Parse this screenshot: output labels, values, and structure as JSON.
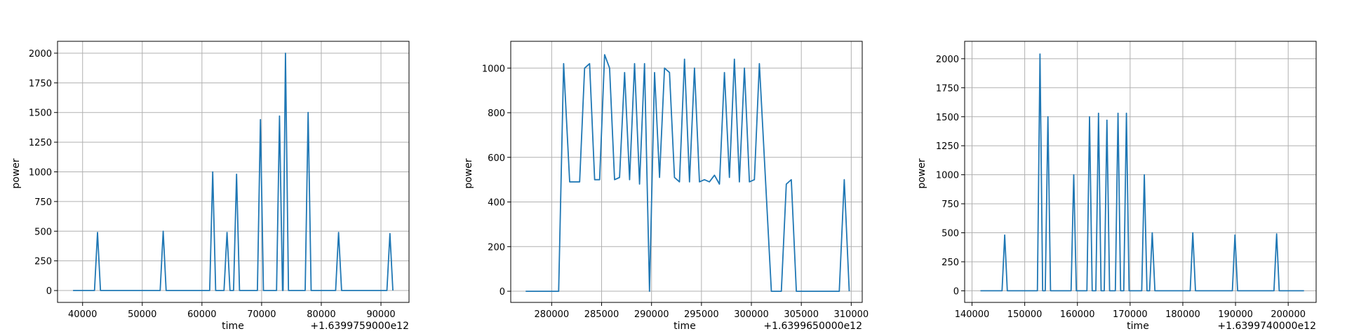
{
  "figure": {
    "background": "#ffffff",
    "line_color": "#1f77b4",
    "grid_color": "#b0b0b0"
  },
  "chart_data": [
    {
      "type": "line",
      "title": "",
      "xlabel": "time",
      "ylabel": "power",
      "offset_label": "+1.6399759000e12",
      "grid": true,
      "xlim": [
        35800,
        94700
      ],
      "ylim": [
        -100,
        2100
      ],
      "xticks": [
        40000,
        50000,
        60000,
        70000,
        80000,
        90000
      ],
      "xtick_labels": [
        "40000",
        "50000",
        "60000",
        "70000",
        "80000",
        "90000"
      ],
      "yticks": [
        0,
        250,
        500,
        750,
        1000,
        1250,
        1500,
        1750,
        2000
      ],
      "ytick_labels": [
        "0",
        "250",
        "500",
        "750",
        "1000",
        "1250",
        "1500",
        "1750",
        "2000"
      ],
      "series": [
        {
          "x": [
            38400,
            42000,
            42500,
            43000,
            53000,
            53500,
            54000,
            61300,
            61800,
            62300,
            63700,
            64200,
            64700,
            65300,
            65800,
            66300,
            69300,
            69800,
            70300,
            72500,
            73000,
            73500,
            73600,
            74000,
            74500,
            77300,
            77800,
            78300,
            82400,
            82900,
            83400,
            91000,
            91500,
            92000
          ],
          "y": [
            0,
            0,
            490,
            0,
            0,
            500,
            0,
            0,
            1000,
            0,
            0,
            490,
            0,
            0,
            980,
            0,
            0,
            1440,
            0,
            0,
            1470,
            0,
            0,
            2000,
            0,
            0,
            1500,
            0,
            0,
            490,
            0,
            0,
            480,
            0
          ]
        }
      ]
    },
    {
      "type": "line",
      "title": "",
      "xlabel": "time",
      "ylabel": "power",
      "offset_label": "+1.6399650000e12",
      "grid": true,
      "xlim": [
        275900,
        311100
      ],
      "ylim": [
        -50,
        1120
      ],
      "xticks": [
        280000,
        285000,
        290000,
        295000,
        300000,
        305000,
        310000
      ],
      "xtick_labels": [
        "280000",
        "285000",
        "290000",
        "295000",
        "300000",
        "305000",
        "310000"
      ],
      "yticks": [
        0,
        200,
        400,
        600,
        800,
        1000
      ],
      "ytick_labels": [
        "0",
        "200",
        "400",
        "600",
        "800",
        "1000"
      ],
      "series": [
        {
          "x": [
            277400,
            280700,
            281200,
            281800,
            282800,
            283300,
            283800,
            284300,
            284800,
            285300,
            285800,
            286300,
            286800,
            287300,
            287800,
            288300,
            288800,
            289300,
            289800,
            290300,
            290800,
            291300,
            291800,
            292300,
            292800,
            293300,
            293800,
            294300,
            294800,
            295300,
            295800,
            296300,
            296800,
            297300,
            297800,
            298300,
            298800,
            299300,
            299800,
            300300,
            300800,
            302000,
            302500,
            303000,
            303500,
            304000,
            304500,
            308800,
            309300,
            309800
          ],
          "y": [
            0,
            0,
            1020,
            490,
            490,
            1000,
            1020,
            500,
            500,
            1060,
            1000,
            500,
            510,
            980,
            500,
            1020,
            480,
            1020,
            0,
            980,
            510,
            1000,
            980,
            510,
            490,
            1040,
            490,
            1000,
            490,
            500,
            490,
            520,
            480,
            980,
            510,
            1040,
            490,
            1000,
            490,
            500,
            1020,
            0,
            0,
            0,
            480,
            500,
            0,
            0,
            500,
            0
          ]
        }
      ]
    },
    {
      "type": "line",
      "title": "",
      "xlabel": "time",
      "ylabel": "power",
      "offset_label": "+1.6399740000e12",
      "grid": true,
      "xlim": [
        138600,
        205300
      ],
      "ylim": [
        -100,
        2150
      ],
      "xticks": [
        140000,
        150000,
        160000,
        170000,
        180000,
        190000,
        200000
      ],
      "xtick_labels": [
        "140000",
        "150000",
        "160000",
        "170000",
        "180000",
        "190000",
        "200000"
      ],
      "yticks": [
        0,
        250,
        500,
        750,
        1000,
        1250,
        1500,
        1750,
        2000
      ],
      "ytick_labels": [
        "0",
        "250",
        "500",
        "750",
        "1000",
        "1250",
        "1500",
        "1750",
        "2000"
      ],
      "series": [
        {
          "x": [
            141600,
            145700,
            146200,
            146700,
            152400,
            152900,
            153400,
            153900,
            154400,
            154900,
            155400,
            158800,
            159300,
            159800,
            161800,
            162300,
            162800,
            163500,
            164000,
            164500,
            165100,
            165600,
            166100,
            167200,
            167700,
            168200,
            168800,
            169300,
            169800,
            172200,
            172700,
            173200,
            173700,
            174200,
            174700,
            181400,
            181900,
            182400,
            189400,
            189900,
            190400,
            197300,
            197800,
            198300,
            203000
          ],
          "y": [
            0,
            0,
            480,
            0,
            0,
            2040,
            0,
            0,
            1500,
            0,
            0,
            0,
            1000,
            0,
            0,
            1500,
            0,
            0,
            1530,
            0,
            0,
            1470,
            0,
            0,
            1530,
            0,
            0,
            1530,
            0,
            0,
            1000,
            0,
            0,
            500,
            0,
            0,
            500,
            0,
            0,
            480,
            0,
            0,
            490,
            0,
            0
          ]
        }
      ]
    }
  ]
}
